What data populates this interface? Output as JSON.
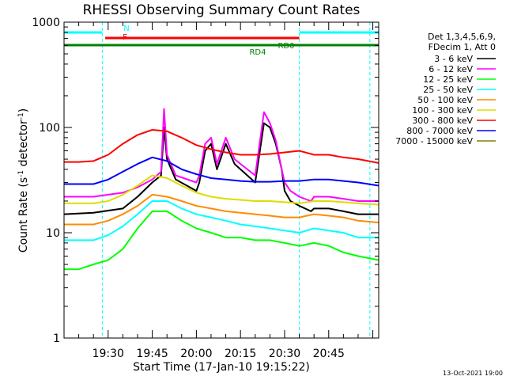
{
  "chart_data": {
    "type": "line",
    "title": "RHESSI Observing Summary Count Rates",
    "xlabel": "Start Time (17-Jan-10 19:15:22)",
    "ylabel_prefix": "Count Rate (s",
    "ylabel_sup1": "-1",
    "ylabel_mid": " detector",
    "ylabel_sup2": "-1",
    "ylabel_suffix": ")",
    "yscale": "log",
    "ylim": [
      1,
      1000
    ],
    "xlim_min": [
      0,
      107
    ],
    "x_ticks": [
      {
        "min": 15,
        "label": "19:30"
      },
      {
        "min": 30,
        "label": "19:45"
      },
      {
        "min": 45,
        "label": "20:00"
      },
      {
        "min": 60,
        "label": "20:15"
      },
      {
        "min": 75,
        "label": "20:30"
      },
      {
        "min": 90,
        "label": "20:45"
      }
    ],
    "y_ticks": [
      {
        "value": 1,
        "label": "1"
      },
      {
        "value": 10,
        "label": "10"
      },
      {
        "value": 100,
        "label": "100"
      },
      {
        "value": 1000,
        "label": "1000"
      }
    ],
    "legend_header": [
      "Det 1,3,4,5,6,9,",
      "FDecim 1, Att 0"
    ],
    "series": [
      {
        "name": "3 - 6 keV",
        "color": "#000000",
        "x": [
          0,
          10,
          20,
          25,
          30,
          33,
          34,
          35,
          38,
          45,
          46,
          48,
          50,
          52,
          55,
          58,
          60,
          65,
          68,
          70,
          72,
          74,
          75,
          77,
          80,
          84,
          85,
          90,
          95,
          100,
          107
        ],
        "y": [
          15,
          15.5,
          17,
          22,
          30,
          35,
          100,
          50,
          32,
          25,
          30,
          60,
          70,
          40,
          70,
          45,
          40,
          30,
          110,
          100,
          70,
          40,
          25,
          20,
          18,
          16,
          17,
          17,
          16,
          15,
          15
        ]
      },
      {
        "name": "6 - 12 keV",
        "color": "#ff00ff",
        "x": [
          0,
          10,
          20,
          25,
          30,
          33,
          34,
          35,
          38,
          45,
          46,
          48,
          50,
          52,
          55,
          58,
          60,
          65,
          68,
          70,
          72,
          74,
          75,
          77,
          80,
          84,
          85,
          90,
          95,
          100,
          107
        ],
        "y": [
          22,
          22,
          24,
          27,
          32,
          38,
          150,
          55,
          35,
          30,
          35,
          70,
          80,
          45,
          80,
          50,
          45,
          35,
          140,
          110,
          75,
          40,
          30,
          25,
          22,
          20,
          22,
          22,
          21,
          20,
          20
        ]
      },
      {
        "name": "12 - 25 keV",
        "color": "#00ff00",
        "x": [
          0,
          5,
          10,
          15,
          20,
          25,
          30,
          35,
          40,
          45,
          50,
          55,
          60,
          65,
          70,
          75,
          80,
          85,
          90,
          95,
          100,
          107
        ],
        "y": [
          4.5,
          4.5,
          5,
          5.5,
          7,
          11,
          16,
          16,
          13,
          11,
          10,
          9,
          9,
          8.5,
          8.5,
          8,
          7.5,
          8,
          7.5,
          6.5,
          6,
          5.5
        ]
      },
      {
        "name": "25 - 50 keV",
        "color": "#00ffff",
        "x": [
          0,
          5,
          10,
          15,
          20,
          25,
          30,
          35,
          40,
          45,
          50,
          55,
          60,
          65,
          70,
          75,
          80,
          85,
          90,
          95,
          100,
          107
        ],
        "y": [
          8.5,
          8.5,
          8.5,
          9.5,
          11.5,
          15,
          20,
          20,
          17,
          15,
          14,
          13,
          12,
          11.5,
          11,
          10.5,
          10,
          11,
          10.5,
          10,
          9,
          9
        ]
      },
      {
        "name": "50 - 100 keV",
        "color": "#ff8c00",
        "x": [
          0,
          5,
          10,
          15,
          20,
          25,
          30,
          35,
          40,
          45,
          50,
          55,
          60,
          65,
          70,
          75,
          80,
          85,
          90,
          95,
          100,
          107
        ],
        "y": [
          12,
          12,
          12,
          13,
          15,
          18,
          23,
          22,
          20,
          18,
          17,
          16,
          15.5,
          15,
          14.5,
          14,
          14,
          15,
          14.5,
          14,
          13,
          12.5
        ]
      },
      {
        "name": "100 - 300 keV",
        "color": "#dddd00",
        "x": [
          0,
          5,
          10,
          15,
          20,
          25,
          30,
          35,
          40,
          45,
          50,
          55,
          60,
          65,
          70,
          75,
          80,
          85,
          90,
          95,
          100,
          107
        ],
        "y": [
          19,
          19,
          19,
          20,
          23,
          28,
          35,
          33,
          28,
          24,
          22,
          21,
          20.5,
          20,
          20,
          19.5,
          19,
          20,
          20,
          19.5,
          19,
          18.5
        ]
      },
      {
        "name": "300 - 800 keV",
        "color": "#ff0000",
        "x": [
          0,
          5,
          10,
          15,
          20,
          25,
          30,
          35,
          40,
          45,
          50,
          55,
          60,
          65,
          70,
          75,
          80,
          85,
          90,
          95,
          100,
          107
        ],
        "y": [
          47,
          47,
          48,
          55,
          70,
          85,
          95,
          92,
          80,
          68,
          62,
          58,
          55,
          55,
          56,
          58,
          60,
          55,
          55,
          52,
          50,
          46
        ]
      },
      {
        "name": "800 - 7000 keV",
        "color": "#0000ff",
        "x": [
          0,
          5,
          10,
          15,
          20,
          25,
          30,
          35,
          40,
          45,
          50,
          55,
          60,
          65,
          70,
          75,
          80,
          85,
          90,
          95,
          100,
          107
        ],
        "y": [
          29,
          29,
          29,
          32,
          38,
          45,
          52,
          48,
          40,
          36,
          33,
          32,
          31,
          30.5,
          30.5,
          31,
          31,
          32,
          32,
          31,
          30,
          28
        ]
      },
      {
        "name": "7000 - 15000 keV",
        "color": "#808000",
        "x": [],
        "y": []
      }
    ],
    "vertical_markers_min": [
      13,
      80,
      104
    ],
    "state_flags": [
      {
        "label": "N",
        "color": "#00ffff",
        "segments": [
          [
            0,
            13
          ],
          [
            80,
            107
          ]
        ]
      },
      {
        "label": "F",
        "color": "#ff0000",
        "segments": [
          [
            14,
            80
          ]
        ]
      },
      {
        "label": "RD4",
        "color": "#008000",
        "segments": [
          [
            0,
            107
          ]
        ]
      },
      {
        "label": "RD0",
        "color": "#008000",
        "segments": [
          [
            0,
            107
          ]
        ]
      }
    ]
  },
  "footer_date": "13-Oct-2021 19:00"
}
